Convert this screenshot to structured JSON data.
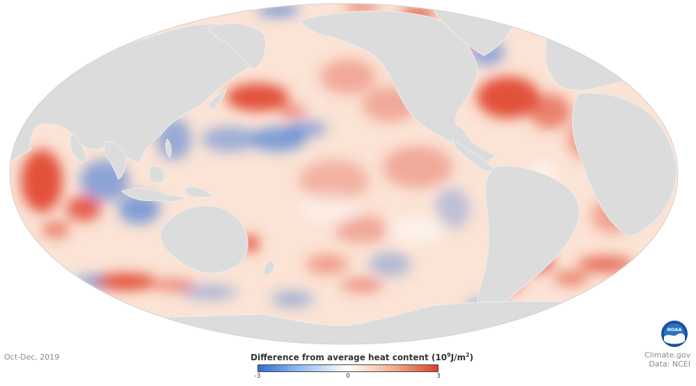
{
  "date_label": "Oct-Dec, 2019",
  "legend": {
    "title": "Difference from average heat content",
    "unit_base": "(10",
    "unit_exp": "9",
    "unit_mid": "J/m",
    "unit_exp2": "2",
    "unit_end": ")",
    "ticks": [
      "-3",
      "0",
      "3"
    ],
    "colors": {
      "low": "#2f6fd6",
      "mid": "#ffffff",
      "high": "#e0402a"
    }
  },
  "credit": {
    "line1": "Climate.gov",
    "line2": "Data: NCEI"
  },
  "logo": {
    "text": "NOAA",
    "icon": "noaa-logo-icon"
  },
  "map": {
    "projection": "Mollweide",
    "land_color": "#dcdcdc",
    "ocean_base_color": "#fbe3d5"
  }
}
